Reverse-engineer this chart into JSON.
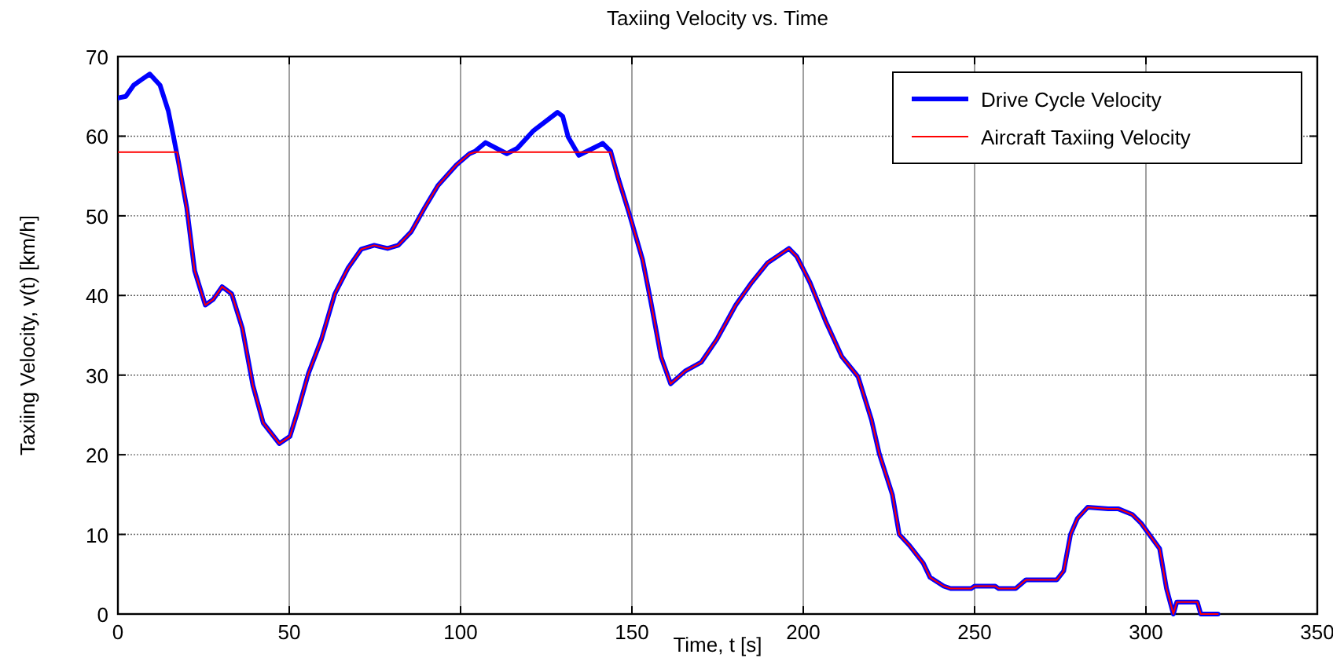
{
  "chart_data": {
    "type": "line",
    "title": "Taxiing Velocity vs. Time",
    "xlabel": "Time, t [s]",
    "ylabel": "Taxiing Velocity, v(t) [km/h]",
    "xlim": [
      0,
      350
    ],
    "ylim": [
      0,
      70
    ],
    "xticks": [
      0,
      50,
      100,
      150,
      200,
      250,
      300,
      350
    ],
    "yticks": [
      0,
      10,
      20,
      30,
      40,
      50,
      60,
      70
    ],
    "grid": true,
    "legend": "top right",
    "series": [
      {
        "name": "Drive Cycle Velocity",
        "color": "#0000ff",
        "x": [
          0,
          2.3,
          4.6,
          6.9,
          9.3,
          12.3,
          14.7,
          16.2,
          17.7,
          20.1,
          22.4,
          25.5,
          27.8,
          30.4,
          33.2,
          36.3,
          39.4,
          42.4,
          47.1,
          50.2,
          52.5,
          55.6,
          59.4,
          63.3,
          67.1,
          71,
          74.8,
          78.7,
          81.8,
          85.6,
          89.5,
          93.4,
          98.8,
          102.6,
          104.2,
          107.3,
          113.5,
          116.6,
          121.3,
          128.3,
          129.8,
          131.4,
          134.5,
          141.5,
          143.8,
          146.1,
          149.2,
          153.1,
          155.4,
          158.5,
          161.3,
          165.5,
          170.2,
          174.8,
          180.3,
          184.9,
          189.6,
          195.8,
          198.1,
          202,
          206.7,
          211.3,
          216,
          219.9,
          222.2,
          226,
          228,
          231,
          235,
          237,
          241,
          243,
          249,
          250,
          256,
          257,
          262,
          265,
          274,
          276,
          278,
          280,
          283,
          289,
          292,
          296,
          298.6,
          304,
          306,
          308,
          309,
          315,
          316,
          321
        ],
        "values": [
          64.8,
          65,
          66.4,
          67.1,
          67.8,
          66.4,
          63.2,
          60,
          56.7,
          51,
          43.1,
          38.8,
          39.5,
          41.1,
          40.2,
          35.9,
          28.7,
          24,
          21.4,
          22.3,
          25.5,
          30.2,
          34.5,
          40.2,
          43.4,
          45.8,
          46.3,
          45.9,
          46.3,
          48,
          51,
          53.8,
          56.4,
          57.8,
          58.1,
          59.2,
          57.8,
          58.5,
          60.7,
          63,
          62.5,
          59.9,
          57.6,
          59.1,
          58.1,
          54.6,
          50.3,
          44.5,
          39.5,
          32.3,
          28.9,
          30.5,
          31.6,
          34.5,
          38.8,
          41.6,
          44.1,
          45.9,
          44.9,
          41.6,
          36.6,
          32.3,
          29.8,
          24.4,
          20.1,
          15,
          10,
          8.6,
          6.4,
          4.6,
          3.5,
          3.2,
          3.2,
          3.5,
          3.5,
          3.2,
          3.2,
          4.3,
          4.3,
          5.4,
          10,
          12,
          13.4,
          13.2,
          13.2,
          12.5,
          11.4,
          8.2,
          3.2,
          0,
          1.5,
          1.5,
          0,
          0
        ]
      },
      {
        "name": "Aircraft Taxiing Velocity",
        "color": "#ff0000",
        "x": [
          0,
          17.3,
          17.7,
          20.1,
          22.4,
          25.5,
          27.8,
          30.4,
          33.2,
          36.3,
          39.4,
          42.4,
          47.1,
          50.2,
          52.5,
          55.6,
          59.4,
          63.3,
          67.1,
          71,
          74.8,
          78.7,
          81.8,
          85.6,
          89.5,
          93.4,
          98.8,
          102.6,
          104.2,
          143.8,
          146.1,
          149.2,
          153.1,
          155.4,
          158.5,
          161.3,
          165.5,
          170.2,
          174.8,
          180.3,
          184.9,
          189.6,
          195.8,
          198.1,
          202,
          206.7,
          211.3,
          216,
          219.9,
          222.2,
          226,
          228,
          231,
          235,
          237,
          241,
          243,
          249,
          250,
          256,
          257,
          262,
          265,
          274,
          276,
          278,
          280,
          283,
          289,
          292,
          296,
          298.6,
          304,
          306,
          308,
          309,
          315,
          316,
          321
        ],
        "values": [
          58,
          58,
          56.7,
          51,
          43.1,
          38.8,
          39.5,
          41.1,
          40.2,
          35.9,
          28.7,
          24,
          21.4,
          22.3,
          25.5,
          30.2,
          34.5,
          40.2,
          43.4,
          45.8,
          46.3,
          45.9,
          46.3,
          48,
          51,
          53.8,
          56.4,
          57.8,
          58,
          58,
          54.6,
          50.3,
          44.5,
          39.5,
          32.3,
          28.9,
          30.5,
          31.6,
          34.5,
          38.8,
          41.6,
          44.1,
          45.9,
          44.9,
          41.6,
          36.6,
          32.3,
          29.8,
          24.4,
          20.1,
          15,
          10,
          8.6,
          6.4,
          4.6,
          3.5,
          3.2,
          3.2,
          3.5,
          3.5,
          3.2,
          3.2,
          4.3,
          4.3,
          5.4,
          10,
          12,
          13.4,
          13.2,
          13.2,
          12.5,
          11.4,
          8.2,
          3.2,
          0,
          1.5,
          1.5,
          0,
          0
        ]
      }
    ]
  }
}
